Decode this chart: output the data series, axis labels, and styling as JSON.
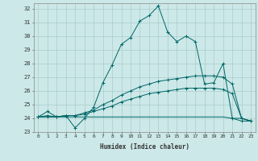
{
  "title": "",
  "xlabel": "Humidex (Indice chaleur)",
  "background_color": "#cce8e8",
  "grid_color": "#aacccc",
  "line_color": "#006666",
  "xlim": [
    -0.5,
    23.5
  ],
  "ylim": [
    23,
    32.4
  ],
  "yticks": [
    23,
    24,
    25,
    26,
    27,
    28,
    29,
    30,
    31,
    32
  ],
  "xticks": [
    0,
    1,
    2,
    3,
    4,
    5,
    6,
    7,
    8,
    9,
    10,
    11,
    12,
    13,
    14,
    15,
    16,
    17,
    18,
    19,
    20,
    21,
    22,
    23
  ],
  "lines": [
    {
      "x": [
        0,
        1,
        2,
        3,
        4,
        5,
        6,
        7,
        8,
        9,
        10,
        11,
        12,
        13,
        14,
        15,
        16,
        17,
        18,
        19,
        20,
        21,
        22,
        23
      ],
      "y": [
        24.1,
        24.5,
        24.1,
        24.2,
        23.3,
        24.0,
        24.8,
        26.6,
        27.9,
        29.4,
        29.9,
        31.1,
        31.5,
        32.2,
        30.3,
        29.6,
        30.0,
        29.6,
        26.5,
        26.6,
        28.0,
        24.0,
        23.8,
        23.8
      ],
      "marker": "+"
    },
    {
      "x": [
        0,
        1,
        2,
        3,
        4,
        5,
        6,
        7,
        8,
        9,
        10,
        11,
        12,
        13,
        14,
        15,
        16,
        17,
        18,
        19,
        20,
        21,
        22,
        23
      ],
      "y": [
        24.1,
        24.2,
        24.1,
        24.2,
        24.2,
        24.4,
        24.6,
        25.0,
        25.3,
        25.7,
        26.0,
        26.3,
        26.5,
        26.7,
        26.8,
        26.9,
        27.0,
        27.1,
        27.1,
        27.1,
        27.0,
        26.5,
        24.0,
        23.8
      ],
      "marker": "+"
    },
    {
      "x": [
        0,
        1,
        2,
        3,
        4,
        5,
        6,
        7,
        8,
        9,
        10,
        11,
        12,
        13,
        14,
        15,
        16,
        17,
        18,
        19,
        20,
        21,
        22,
        23
      ],
      "y": [
        24.1,
        24.1,
        24.1,
        24.2,
        24.2,
        24.3,
        24.5,
        24.7,
        24.9,
        25.2,
        25.4,
        25.6,
        25.8,
        25.9,
        26.0,
        26.1,
        26.2,
        26.2,
        26.2,
        26.2,
        26.1,
        25.8,
        24.0,
        23.8
      ],
      "marker": "+"
    },
    {
      "x": [
        0,
        1,
        2,
        3,
        4,
        5,
        6,
        7,
        8,
        9,
        10,
        11,
        12,
        13,
        14,
        15,
        16,
        17,
        18,
        19,
        20,
        21,
        22,
        23
      ],
      "y": [
        24.1,
        24.1,
        24.1,
        24.1,
        24.1,
        24.1,
        24.1,
        24.1,
        24.1,
        24.1,
        24.1,
        24.1,
        24.1,
        24.1,
        24.1,
        24.1,
        24.1,
        24.1,
        24.1,
        24.1,
        24.1,
        24.0,
        24.0,
        23.8
      ],
      "marker": null
    }
  ]
}
